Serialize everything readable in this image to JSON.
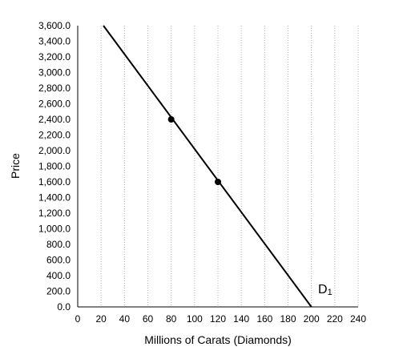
{
  "chart_data": {
    "type": "line",
    "xlabel": "Millions of Carats (Diamonds)",
    "ylabel": "Price",
    "xlim": [
      0,
      240
    ],
    "ylim": [
      0,
      3600
    ],
    "x_ticks": [
      "0",
      "20",
      "40",
      "60",
      "80",
      "100",
      "120",
      "140",
      "160",
      "180",
      "200",
      "220",
      "240"
    ],
    "y_ticks": [
      "0.0",
      "200.0",
      "400.0",
      "600.0",
      "800.0",
      "1,000.0",
      "1,200.0",
      "1,400.0",
      "1,600.0",
      "1,800.0",
      "2,000.0",
      "2,200.0",
      "2,400.0",
      "2,600.0",
      "2,800.0",
      "3,000.0",
      "3,200.0",
      "3,400.0",
      "3,600.0"
    ],
    "grid": {
      "vertical": true,
      "horizontal": false,
      "style": "dotted"
    },
    "series": [
      {
        "name": "D1",
        "label_main": "D",
        "label_sub": "1",
        "points": [
          [
            22,
            3600
          ],
          [
            200,
            0
          ]
        ],
        "color": "#000000"
      }
    ],
    "markers": [
      {
        "x": 80,
        "y": 2400
      },
      {
        "x": 120,
        "y": 1600
      }
    ]
  }
}
